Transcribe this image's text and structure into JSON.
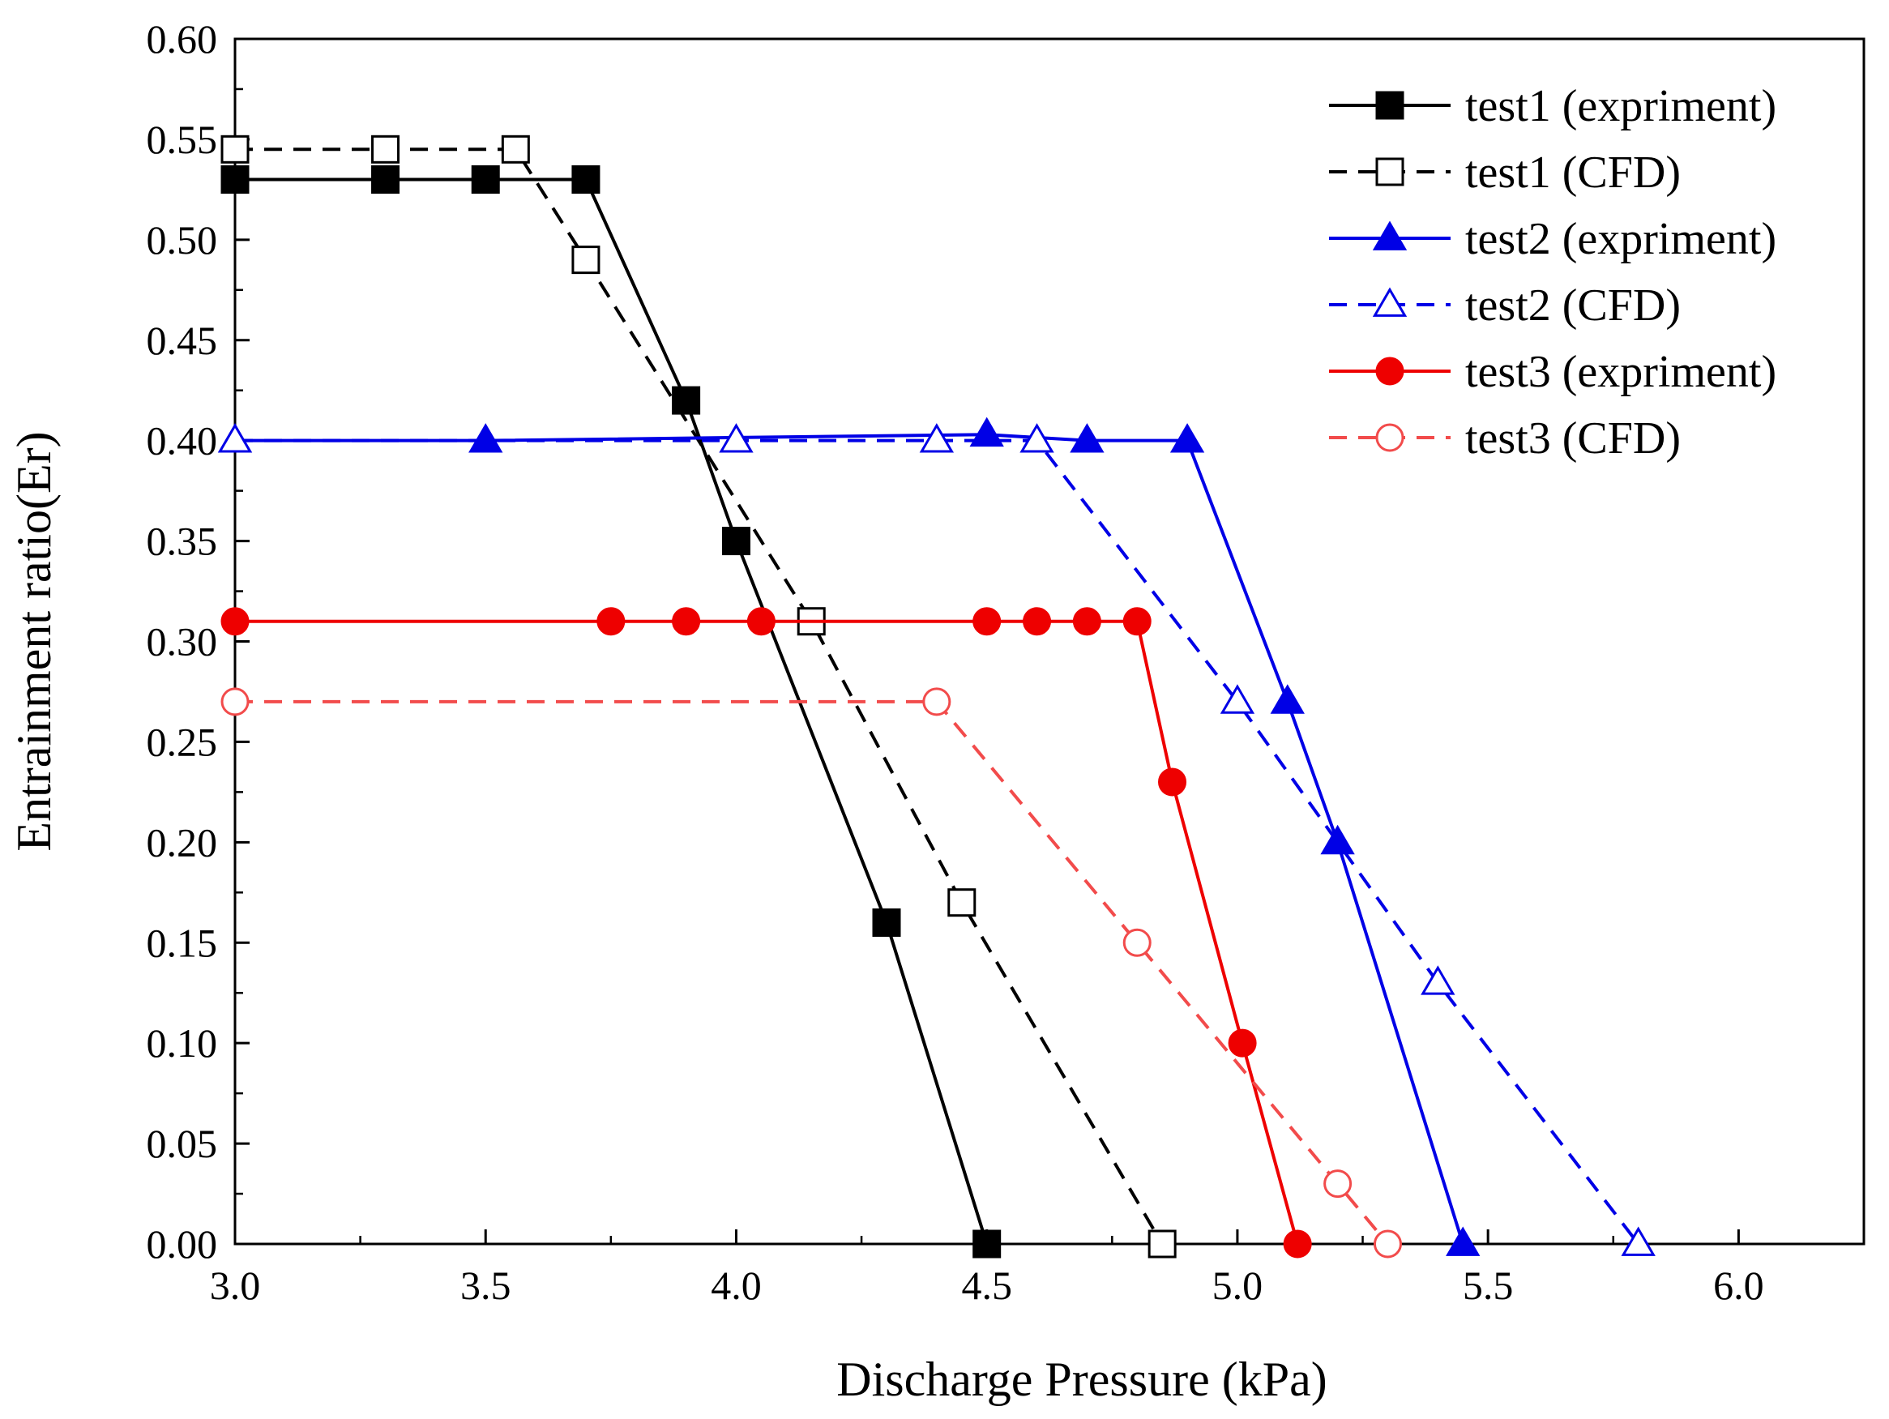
{
  "chart_data": {
    "type": "line",
    "title": "",
    "xlabel": "Discharge Pressure (kPa)",
    "ylabel": "Entrainment ratio(Er)",
    "xlim": [
      3.0,
      6.25
    ],
    "ylim": [
      0.0,
      0.6
    ],
    "xticks": [
      3.0,
      3.5,
      4.0,
      4.5,
      5.0,
      5.5,
      6.0
    ],
    "xtick_labels": [
      "3.0",
      "3.5",
      "4.0",
      "4.5",
      "5.0",
      "5.5",
      "6.0"
    ],
    "yticks": [
      0.0,
      0.05,
      0.1,
      0.15,
      0.2,
      0.25,
      0.3,
      0.35,
      0.4,
      0.45,
      0.5,
      0.55,
      0.6
    ],
    "ytick_labels": [
      "0.00",
      "0.05",
      "0.10",
      "0.15",
      "0.20",
      "0.25",
      "0.30",
      "0.35",
      "0.40",
      "0.45",
      "0.50",
      "0.55",
      "0.60"
    ],
    "grid": false,
    "legend_position": "top-right",
    "series": [
      {
        "name": "test1 (expriment)",
        "color": "#000000",
        "dash": "solid",
        "marker": "square",
        "filled": true,
        "x": [
          3.0,
          3.3,
          3.5,
          3.7,
          3.9,
          4.0,
          4.3,
          4.5
        ],
        "y": [
          0.53,
          0.53,
          0.53,
          0.53,
          0.42,
          0.35,
          0.16,
          0.0
        ]
      },
      {
        "name": "test1 (CFD)",
        "color": "#000000",
        "dash": "dashed",
        "marker": "square",
        "filled": false,
        "x": [
          3.0,
          3.3,
          3.56,
          3.7,
          4.15,
          4.45,
          4.85
        ],
        "y": [
          0.545,
          0.545,
          0.545,
          0.49,
          0.31,
          0.17,
          0.0
        ]
      },
      {
        "name": "test2 (expriment)",
        "color": "#0000e6",
        "dash": "solid",
        "marker": "triangle",
        "filled": true,
        "x": [
          3.0,
          3.5,
          4.5,
          4.7,
          4.9,
          5.1,
          5.2,
          5.45
        ],
        "y": [
          0.4,
          0.4,
          0.403,
          0.4,
          0.4,
          0.27,
          0.2,
          0.0
        ]
      },
      {
        "name": "test2 (CFD)",
        "color": "#0000e6",
        "dash": "dashed",
        "marker": "triangle",
        "filled": false,
        "x": [
          3.0,
          4.0,
          4.4,
          4.6,
          5.0,
          5.4,
          5.8
        ],
        "y": [
          0.4,
          0.4,
          0.4,
          0.4,
          0.27,
          0.13,
          0.0
        ]
      },
      {
        "name": "test3 (expriment)",
        "color": "#ee0000",
        "dash": "solid",
        "marker": "circle",
        "filled": true,
        "x": [
          3.0,
          3.75,
          3.9,
          4.05,
          4.5,
          4.6,
          4.7,
          4.8,
          4.87,
          5.01,
          5.12
        ],
        "y": [
          0.31,
          0.31,
          0.31,
          0.31,
          0.31,
          0.31,
          0.31,
          0.31,
          0.23,
          0.1,
          0.0
        ]
      },
      {
        "name": "test3 (CFD)",
        "color": "#f24b4b",
        "dash": "dashed",
        "marker": "circle",
        "filled": false,
        "x": [
          3.0,
          4.4,
          4.8,
          5.2,
          5.3
        ],
        "y": [
          0.27,
          0.27,
          0.15,
          0.03,
          0.0
        ]
      }
    ]
  }
}
